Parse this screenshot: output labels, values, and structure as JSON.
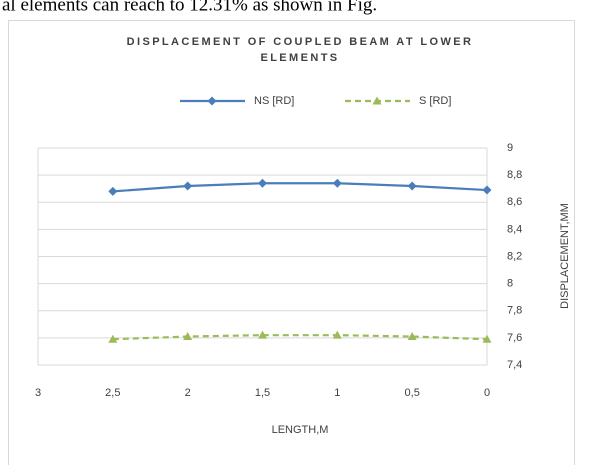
{
  "text_above": "al elements can reach to 12.31% as shown in Fig.",
  "chart_data": {
    "type": "line",
    "title": "DISPLACEMENT OF COUPLED BEAM AT LOWER ELEMENTS",
    "x_label": "LENGTH,M",
    "y_label": "DISPLACEMENT,MM",
    "x": [
      2.5,
      2,
      1.5,
      1,
      0.5,
      0
    ],
    "series": [
      {
        "name": "NS [RD]",
        "color": "#4a7ebb",
        "marker": "diamond",
        "dash": false,
        "values": [
          8.68,
          8.72,
          8.74,
          8.74,
          8.72,
          8.69
        ]
      },
      {
        "name": "S [RD]",
        "color": "#9bbb59",
        "marker": "triangle",
        "dash": true,
        "values": [
          7.59,
          7.61,
          7.62,
          7.62,
          7.61,
          7.59
        ]
      }
    ],
    "xlim": [
      3,
      0
    ],
    "xticks": [
      3,
      {
        "value": 2.5,
        "label": "2,5"
      },
      2,
      {
        "value": 1.5,
        "label": "1,5"
      },
      1,
      {
        "value": 0.5,
        "label": "0,5"
      },
      0
    ],
    "ylim": [
      7.4,
      9
    ],
    "yticks": [
      {
        "value": 7.4,
        "label": "7,4"
      },
      {
        "value": 7.6,
        "label": "7,6"
      },
      {
        "value": 7.8,
        "label": "7,8"
      },
      8,
      {
        "value": 8.2,
        "label": "8,2"
      },
      {
        "value": 8.4,
        "label": "8,4"
      },
      {
        "value": 8.6,
        "label": "8,6"
      },
      {
        "value": 8.8,
        "label": "8,8"
      },
      9
    ],
    "y_axis_side": "right",
    "grid": true,
    "legend": "top"
  }
}
